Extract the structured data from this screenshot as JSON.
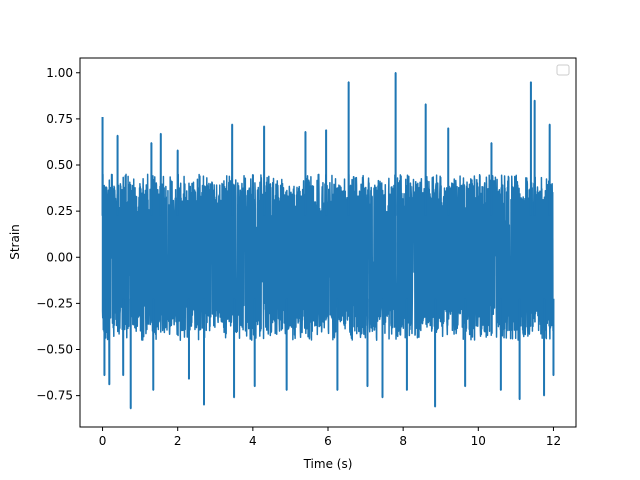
{
  "chart_data": {
    "type": "line",
    "title": "",
    "xlabel": "Time (s)",
    "ylabel": "Strain",
    "xlim": [
      -0.6,
      12.6
    ],
    "ylim": [
      -0.92,
      1.08
    ],
    "x_ticks": [
      0,
      2,
      4,
      6,
      8,
      10,
      12
    ],
    "x_tick_labels": [
      "0",
      "2",
      "4",
      "6",
      "8",
      "10",
      "12"
    ],
    "y_ticks": [
      -0.75,
      -0.5,
      -0.25,
      0.0,
      0.25,
      0.5,
      0.75,
      1.0
    ],
    "y_tick_labels": [
      "−0.75",
      "−0.50",
      "−0.25",
      "0.00",
      "0.25",
      "0.50",
      "0.75",
      "1.00"
    ],
    "grid": false,
    "legend": {
      "placement": "top-right",
      "entries": []
    },
    "series": [
      {
        "color": "#1f77b4",
        "x_range": [
          0,
          12
        ],
        "amplitude_band": [
          -0.45,
          0.45
        ],
        "peaks": [
          {
            "x": 0.0,
            "y": 0.76
          },
          {
            "x": 0.05,
            "y": -0.64
          },
          {
            "x": 0.18,
            "y": -0.69
          },
          {
            "x": 0.4,
            "y": 0.66
          },
          {
            "x": 0.55,
            "y": -0.64
          },
          {
            "x": 0.75,
            "y": -0.82
          },
          {
            "x": 1.3,
            "y": 0.62
          },
          {
            "x": 1.35,
            "y": -0.72
          },
          {
            "x": 1.55,
            "y": 0.67
          },
          {
            "x": 2.0,
            "y": 0.58
          },
          {
            "x": 2.3,
            "y": -0.66
          },
          {
            "x": 2.7,
            "y": -0.8
          },
          {
            "x": 3.45,
            "y": 0.72
          },
          {
            "x": 3.5,
            "y": -0.76
          },
          {
            "x": 4.05,
            "y": -0.7
          },
          {
            "x": 4.3,
            "y": 0.71
          },
          {
            "x": 4.9,
            "y": -0.72
          },
          {
            "x": 5.4,
            "y": 0.68
          },
          {
            "x": 5.95,
            "y": 0.69
          },
          {
            "x": 6.25,
            "y": -0.72
          },
          {
            "x": 6.55,
            "y": 0.95
          },
          {
            "x": 7.05,
            "y": -0.7
          },
          {
            "x": 7.45,
            "y": -0.76
          },
          {
            "x": 7.8,
            "y": 1.0
          },
          {
            "x": 8.1,
            "y": -0.72
          },
          {
            "x": 8.6,
            "y": 0.83
          },
          {
            "x": 8.85,
            "y": -0.81
          },
          {
            "x": 9.2,
            "y": 0.7
          },
          {
            "x": 9.65,
            "y": -0.7
          },
          {
            "x": 10.35,
            "y": 0.62
          },
          {
            "x": 10.6,
            "y": -0.72
          },
          {
            "x": 11.1,
            "y": -0.77
          },
          {
            "x": 11.4,
            "y": 0.95
          },
          {
            "x": 11.5,
            "y": 0.85
          },
          {
            "x": 11.75,
            "y": -0.75
          },
          {
            "x": 11.9,
            "y": 0.72
          },
          {
            "x": 12.0,
            "y": -0.64
          }
        ]
      }
    ]
  }
}
